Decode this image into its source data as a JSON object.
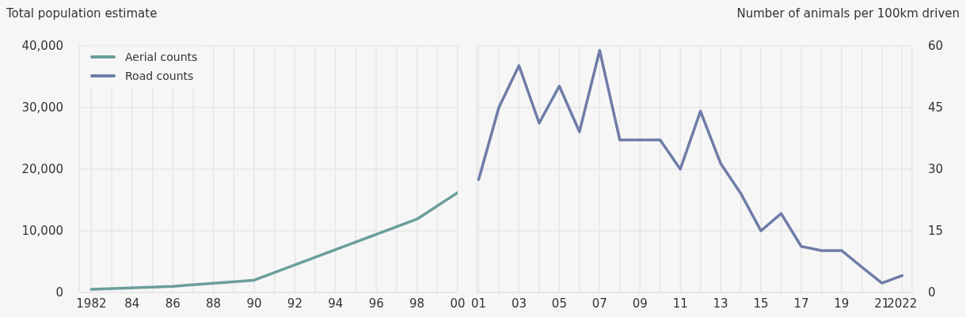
{
  "chart_data": [
    {
      "type": "line",
      "ylabel": "Total population estimate",
      "x": [
        1982,
        1986,
        1990,
        1998,
        2000
      ],
      "xlim": [
        1981.4,
        2000
      ],
      "xticks": [
        1982,
        {
          "value": 1983,
          "label": null
        },
        {
          "value": 1984,
          "label": "84"
        },
        {
          "value": 1985,
          "label": null
        },
        {
          "value": 1986,
          "label": "86"
        },
        {
          "value": 1987,
          "label": null
        },
        {
          "value": 1988,
          "label": "88"
        },
        {
          "value": 1989,
          "label": null
        },
        {
          "value": 1990,
          "label": "90"
        },
        {
          "value": 1991,
          "label": null
        },
        {
          "value": 1992,
          "label": "92"
        },
        {
          "value": 1993,
          "label": null
        },
        {
          "value": 1994,
          "label": "94"
        },
        {
          "value": 1995,
          "label": null
        },
        {
          "value": 1996,
          "label": "96"
        },
        {
          "value": 1997,
          "label": null
        },
        {
          "value": 1998,
          "label": "98"
        },
        {
          "value": 1999,
          "label": null
        },
        {
          "value": 2000,
          "label": "00"
        }
      ],
      "ylim": [
        0,
        40000
      ],
      "yticks": [
        {
          "value": 0,
          "label": "0"
        },
        {
          "value": 10000,
          "label": "10,000"
        },
        {
          "value": 20000,
          "label": "20,000"
        },
        {
          "value": 30000,
          "label": "30,000"
        },
        {
          "value": 40000,
          "label": "40,000"
        }
      ],
      "grid": true,
      "legend": "top left",
      "series": [
        {
          "name": "Aerial counts",
          "color": "#6a9e9a",
          "values": [
            500,
            1000,
            2000,
            11900,
            16200
          ]
        }
      ]
    },
    {
      "type": "line",
      "ylabel": "Number of animals per 100km driven",
      "x": [
        2001,
        2002,
        2003,
        2004,
        2005,
        2006,
        2007,
        2008,
        2009,
        2010,
        2011,
        2012,
        2013,
        2014,
        2015,
        2016,
        2017,
        2018,
        2019,
        2020,
        2021,
        2022
      ],
      "xlim": [
        2000.9,
        2022.5
      ],
      "xticks": [
        {
          "value": 2001,
          "label": "01"
        },
        {
          "value": 2002,
          "label": null
        },
        {
          "value": 2003,
          "label": "03"
        },
        {
          "value": 2004,
          "label": null
        },
        {
          "value": 2005,
          "label": "05"
        },
        {
          "value": 2006,
          "label": null
        },
        {
          "value": 2007,
          "label": "07"
        },
        {
          "value": 2008,
          "label": null
        },
        {
          "value": 2009,
          "label": "09"
        },
        {
          "value": 2010,
          "label": null
        },
        {
          "value": 2011,
          "label": "11"
        },
        {
          "value": 2012,
          "label": null
        },
        {
          "value": 2013,
          "label": "13"
        },
        {
          "value": 2014,
          "label": null
        },
        {
          "value": 2015,
          "label": "15"
        },
        {
          "value": 2016,
          "label": null
        },
        {
          "value": 2017,
          "label": "17"
        },
        {
          "value": 2018,
          "label": null
        },
        {
          "value": 2019,
          "label": "19"
        },
        {
          "value": 2020,
          "label": null
        },
        {
          "value": 2021,
          "label": "21"
        },
        2022
      ],
      "ylim": [
        0,
        60
      ],
      "yticks": [
        0,
        15,
        30,
        45,
        60
      ],
      "grid": true,
      "legend": "top left",
      "series": [
        {
          "name": "Road counts",
          "color": "#6e7ca8",
          "values": [
            27.5,
            45,
            55.2,
            41.2,
            50.2,
            39.1,
            58.9,
            37.1,
            37.1,
            37.1,
            30,
            44.1,
            31.4,
            24.1,
            15,
            19.2,
            11.2,
            10.2,
            10.2,
            6.2,
            2.3,
            4.1
          ]
        }
      ]
    }
  ]
}
